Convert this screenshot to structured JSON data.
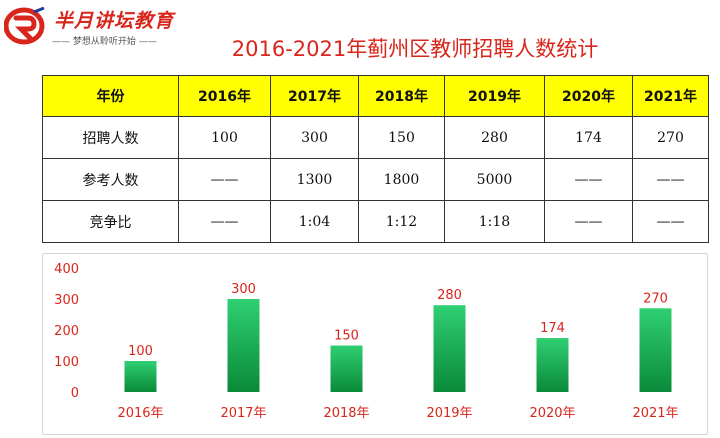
{
  "logo": {
    "name": "半月讲坛教育",
    "slogan": "—— 梦想从聆听开始 ——"
  },
  "title": "2016-2021年蓟州区教师招聘人数统计",
  "colors": {
    "header_bg": "#ffff00",
    "accent_red": "#d9261c",
    "bar_top": "#2fcf72",
    "bar_bottom": "#0a8a3a"
  },
  "table": {
    "headers": [
      "年份",
      "2016年",
      "2017年",
      "2018年",
      "2019年",
      "2020年",
      "2021年"
    ],
    "rows": [
      {
        "label": "招聘人数",
        "cells": [
          "100",
          "300",
          "150",
          "280",
          "174",
          "270"
        ]
      },
      {
        "label": "参考人数",
        "cells": [
          "——",
          "1300",
          "1800",
          "5000",
          "——",
          "——"
        ]
      },
      {
        "label": "竞争比",
        "cells": [
          "——",
          "1:04",
          "1:12",
          "1:18",
          "——",
          "——"
        ]
      }
    ]
  },
  "chart_data": {
    "type": "bar",
    "categories": [
      "2016年",
      "2017年",
      "2018年",
      "2019年",
      "2020年",
      "2021年"
    ],
    "values": [
      100,
      300,
      150,
      280,
      174,
      270
    ],
    "data_labels": [
      "100",
      "300",
      "150",
      "280",
      "174",
      "270"
    ],
    "ylim": [
      0,
      400
    ],
    "yticks": [
      "0",
      "100",
      "200",
      "300",
      "400"
    ],
    "grid": false,
    "legend": "none",
    "title": "",
    "xlabel": "",
    "ylabel": ""
  }
}
